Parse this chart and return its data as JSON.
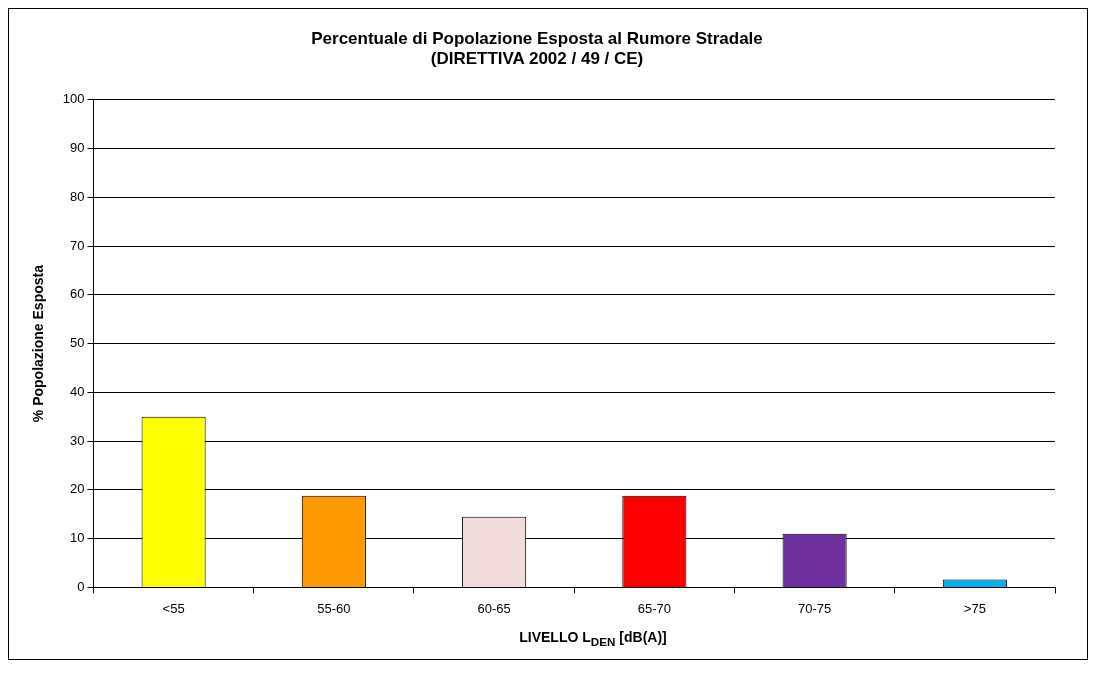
{
  "chart_data": {
    "type": "bar",
    "title": "Percentuale di Popolazione Esposta al Rumore Stradale\n(DIRETTIVA 2002 / 49 / CE)",
    "xlabel": "LIVELLO L$_{DEN}$ [dB(A)]",
    "ylabel": "% Popolazione Esposta",
    "categories": [
      "<55",
      "55-60",
      "60-65",
      "65-70",
      "70-75",
      ">75"
    ],
    "values": [
      35,
      18.8,
      14.5,
      18.8,
      11,
      1.6
    ],
    "colors": [
      "#ffff00",
      "#ff9900",
      "#f2dcdb",
      "#ff0000",
      "#7030a0",
      "#00b0f0"
    ],
    "ylim": [
      0,
      100
    ],
    "yticks": [
      0,
      10,
      20,
      30,
      40,
      50,
      60,
      70,
      80,
      90,
      100
    ],
    "grid": "y",
    "legend": false
  }
}
